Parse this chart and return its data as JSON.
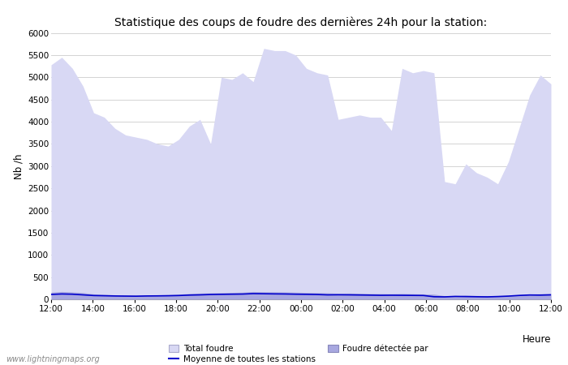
{
  "title": "Statistique des coups de foudre des dernières 24h pour la station:",
  "ylabel": "Nb /h",
  "xlabel": "Heure",
  "watermark": "www.lightningmaps.org",
  "ylim": [
    0,
    6000
  ],
  "yticks": [
    0,
    500,
    1000,
    1500,
    2000,
    2500,
    3000,
    3500,
    4000,
    4500,
    5000,
    5500,
    6000
  ],
  "xtick_labels": [
    "12:00",
    "14:00",
    "16:00",
    "18:00",
    "20:00",
    "22:00",
    "00:00",
    "02:00",
    "04:00",
    "06:00",
    "08:00",
    "10:00",
    "12:00"
  ],
  "bg_color": "#ffffff",
  "plot_bg_color": "#ffffff",
  "grid_color": "#cccccc",
  "fill_color_total": "#d8d8f4",
  "fill_color_detected": "#a8a8e0",
  "line_color": "#0000cc",
  "legend_items": [
    "Total foudre",
    "Foudre détectée par",
    "Moyenne de toutes les stations"
  ],
  "total_foudre": [
    5280,
    5450,
    5200,
    4800,
    4200,
    4100,
    3850,
    3700,
    3650,
    3600,
    3500,
    3450,
    3600,
    3900,
    4050,
    3500,
    5000,
    4950,
    5100,
    4900,
    5650,
    5600,
    5600,
    5500,
    5200,
    5100,
    5050,
    4050,
    4100,
    4150,
    4100,
    4100,
    3800,
    5200,
    5100,
    5150,
    5100,
    2650,
    2600,
    3050,
    2850,
    2750,
    2600,
    3100,
    3850,
    4600,
    5050,
    4850
  ],
  "detected": [
    160,
    175,
    165,
    150,
    120,
    110,
    100,
    95,
    90,
    95,
    100,
    105,
    115,
    130,
    140,
    145,
    150,
    155,
    160,
    175,
    170,
    168,
    165,
    160,
    155,
    150,
    145,
    135,
    140,
    135,
    130,
    128,
    125,
    130,
    125,
    120,
    115,
    80,
    75,
    90,
    85,
    80,
    75,
    85,
    100,
    115,
    125,
    130
  ],
  "moyenne": [
    110,
    120,
    115,
    100,
    85,
    80,
    75,
    72,
    70,
    75,
    77,
    80,
    85,
    95,
    100,
    108,
    112,
    115,
    118,
    128,
    125,
    122,
    120,
    115,
    112,
    108,
    100,
    102,
    100,
    97,
    94,
    90,
    92,
    90,
    88,
    86,
    58,
    55,
    65,
    62,
    58,
    55,
    62,
    72,
    87,
    97,
    94,
    100
  ]
}
